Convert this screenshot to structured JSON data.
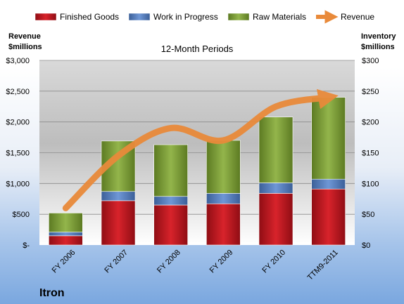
{
  "chart_data": {
    "type": "bar",
    "subtitle": "12-Month Periods",
    "company": "Itron",
    "categories": [
      "FY 2006",
      "FY 2007",
      "FY 2008",
      "FY 2009",
      "FY 2010",
      "TTM9-2011"
    ],
    "left_axis": {
      "label_line1": "Revenue",
      "label_line2": "$millions",
      "ylim": [
        0,
        3000
      ],
      "ticks": [
        "$-",
        "$500",
        "$1,000",
        "$1,500",
        "$2,000",
        "$2,500",
        "$3,000"
      ]
    },
    "right_axis": {
      "label_line1": "Inventory",
      "label_line2": "$millions",
      "ylim": [
        0,
        300
      ],
      "ticks": [
        "$0",
        "$50",
        "$100",
        "$150",
        "$200",
        "$250",
        "$300"
      ]
    },
    "series": [
      {
        "name": "Finished Goods",
        "axis": "right",
        "stacked": true,
        "color": "#c0141c",
        "values": [
          15,
          72,
          65,
          67,
          84,
          91
        ]
      },
      {
        "name": "Work in Progress",
        "axis": "right",
        "stacked": true,
        "color": "#4f7bc0",
        "values": [
          6,
          15,
          14,
          17,
          17,
          16
        ]
      },
      {
        "name": "Raw Materials",
        "axis": "right",
        "stacked": true,
        "color": "#7e9e3a",
        "values": [
          31,
          82,
          84,
          86,
          107,
          133
        ]
      },
      {
        "name": "Revenue",
        "axis": "left",
        "type": "line",
        "color": "#e98a3a",
        "values": [
          600,
          1450,
          1900,
          1700,
          2250,
          2400
        ]
      }
    ],
    "grid": true,
    "legend": "top"
  }
}
